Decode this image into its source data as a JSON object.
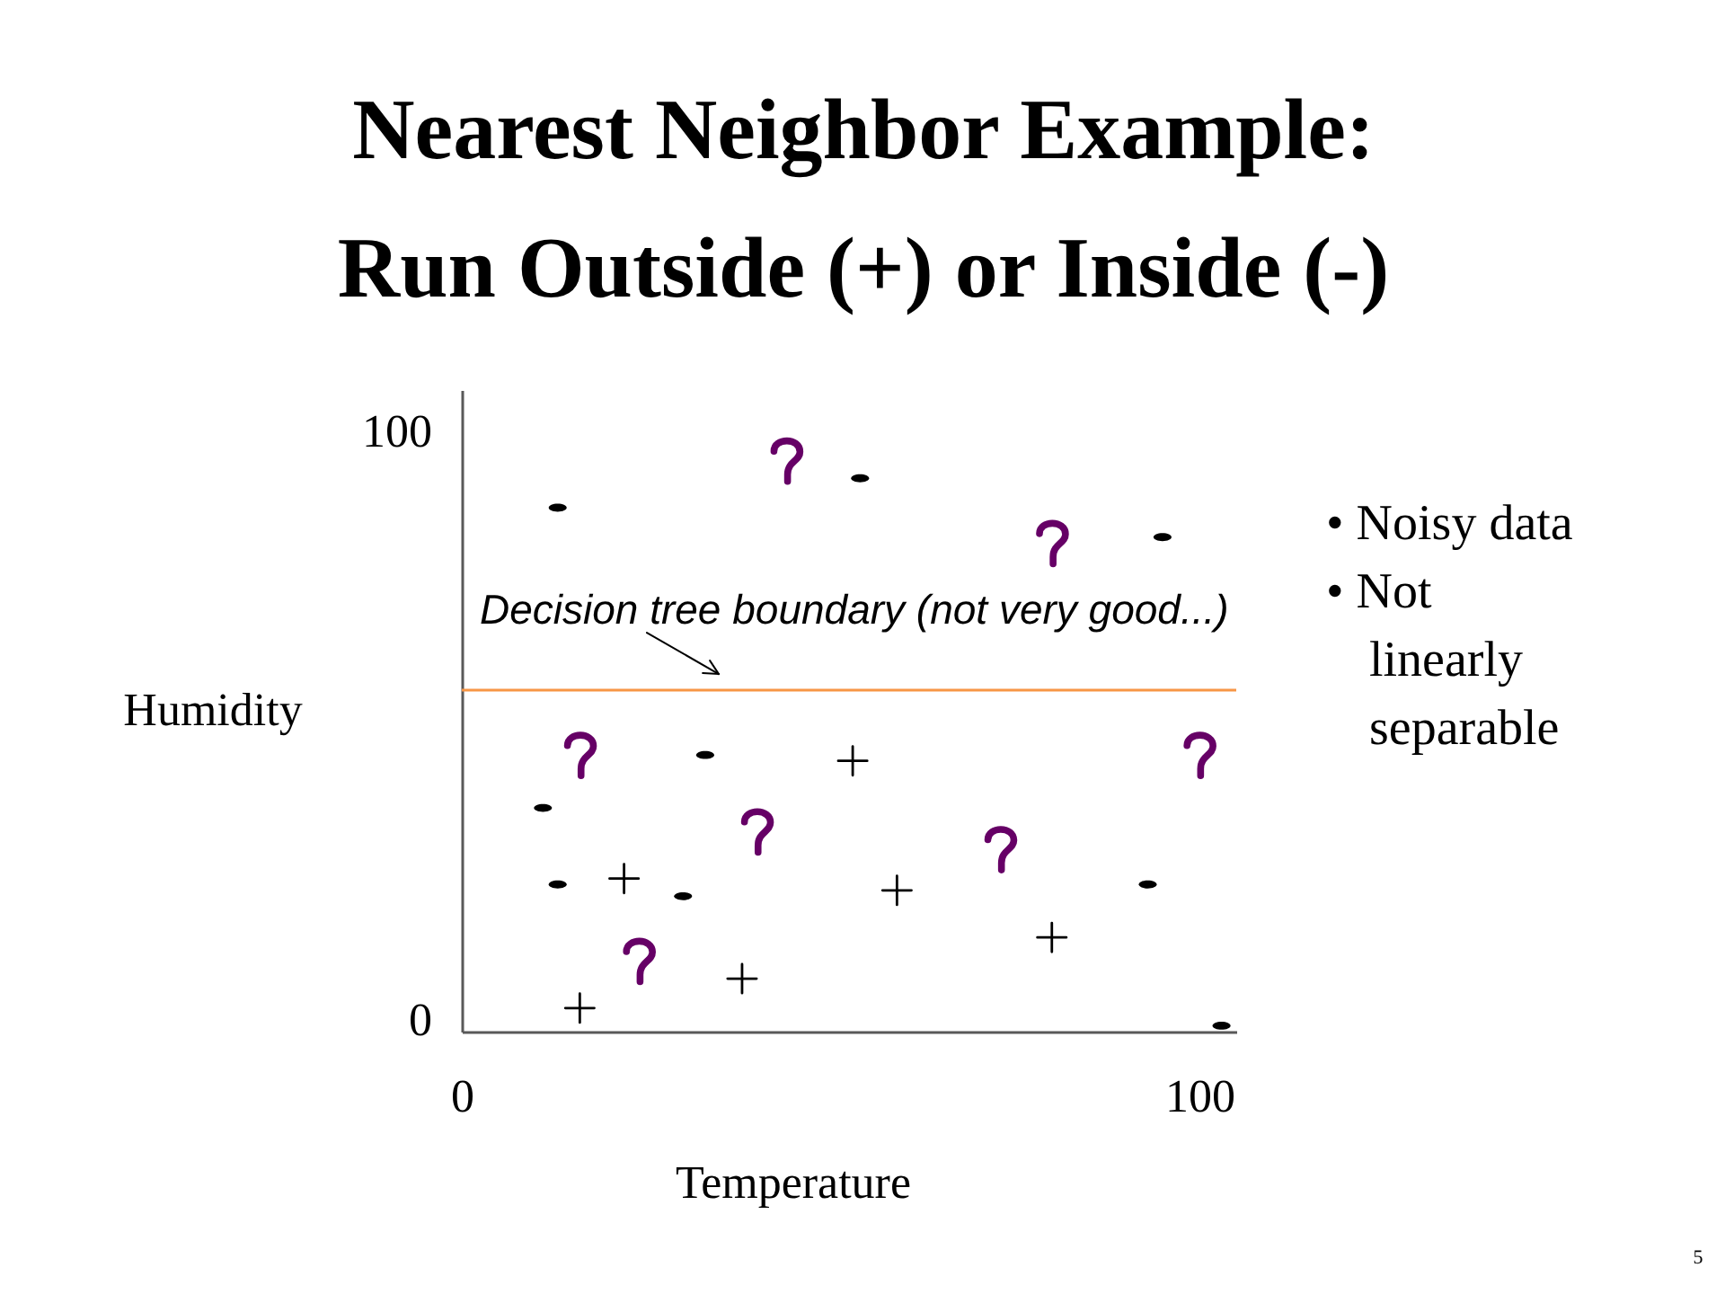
{
  "chart_data": {
    "type": "scatter",
    "title": "Nearest Neighbor Example:\nRun Outside (+) or Inside (-)",
    "xlabel": "Temperature",
    "ylabel": "Humidity",
    "xlim": [
      0,
      105
    ],
    "ylim": [
      -2,
      107
    ],
    "xticks": [
      0,
      100
    ],
    "yticks": [
      0,
      100
    ],
    "series": [
      {
        "color": "#000000",
        "marker": "cross",
        "x": [
          16,
          22,
          38,
          53,
          59,
          80
        ],
        "values": [
          2,
          24,
          7,
          44,
          22,
          14
        ]
      },
      {
        "color": "#000000",
        "x": [
          13,
          54,
          95,
          33,
          11,
          13,
          30,
          93,
          103
        ],
        "values": [
          87,
          92,
          82,
          45,
          36,
          23,
          21,
          23,
          -1
        ]
      },
      {
        "color": "#660066",
        "x": [
          44,
          80,
          16,
          40,
          24,
          73,
          100
        ],
        "values": [
          95,
          81,
          45,
          32,
          10,
          29,
          45
        ]
      }
    ],
    "ref_lines": [
      {
        "axis": "y",
        "value": 56,
        "label": "Decision tree boundary (not very good...)",
        "color": "#f79646"
      }
    ],
    "annotations": [
      "• Noisy data",
      "• Not linearly separable",
      "5"
    ]
  }
}
